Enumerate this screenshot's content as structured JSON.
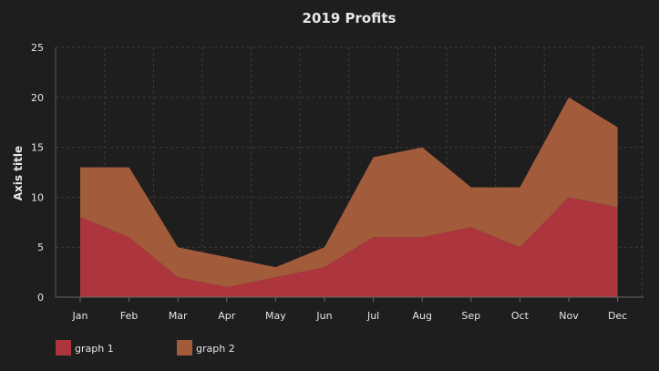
{
  "chart_data": {
    "type": "area",
    "stacked": true,
    "title": "2019 Profits",
    "xlabel": "",
    "ylabel": "Axis title",
    "categories": [
      "Jan",
      "Feb",
      "Mar",
      "Apr",
      "May",
      "Jun",
      "Jul",
      "Aug",
      "Sep",
      "Oct",
      "Nov",
      "Dec"
    ],
    "series": [
      {
        "name": "graph 1",
        "color": "#ad353d",
        "values": [
          8,
          6,
          2,
          1,
          2,
          3,
          6,
          6,
          7,
          5,
          10,
          9
        ]
      },
      {
        "name": "graph 2",
        "color": "#a35c3b",
        "values": [
          5,
          7,
          3,
          3,
          1,
          2,
          8,
          9,
          4,
          6,
          10,
          8
        ]
      }
    ],
    "ylim": [
      0,
      25
    ],
    "yticks": [
      0,
      5,
      10,
      15,
      20,
      25
    ],
    "grid": true,
    "legend": "bottom-left",
    "background": "#1e1e1f"
  }
}
